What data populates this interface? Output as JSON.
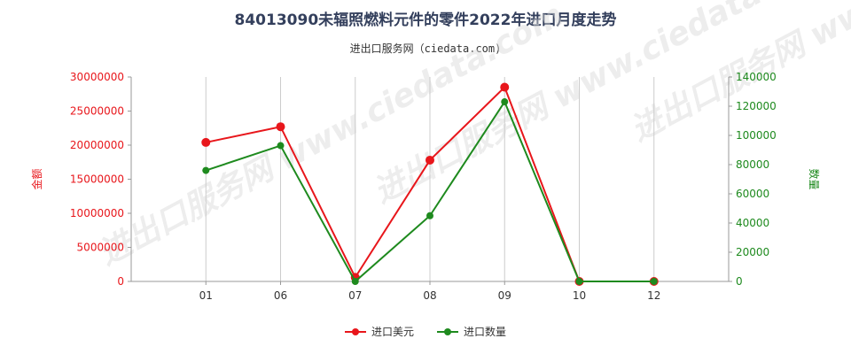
{
  "title": "84013090未辐照燃料元件的零件2022年进口月度走势",
  "subtitle": "进出口服务网（ciedata.com)",
  "watermark": "进出口服务网 www.ciedata.com",
  "colors": {
    "amount": "#e8161b",
    "quantity": "#1e8a1e",
    "grid": "#cccccc"
  },
  "chart_data": {
    "type": "line",
    "categories": [
      "01",
      "06",
      "07",
      "08",
      "09",
      "10",
      "12"
    ],
    "series": [
      {
        "name": "进口美元",
        "axis": "left",
        "values": [
          20400000,
          22700000,
          600000,
          17800000,
          28500000,
          0,
          0
        ]
      },
      {
        "name": "进口数量",
        "axis": "right",
        "values": [
          76000,
          93000,
          0,
          45000,
          123000,
          0,
          0
        ]
      }
    ],
    "ylabel_left": "金额",
    "ylabel_right": "数量",
    "ylim_left": [
      0,
      30000000
    ],
    "ylim_right": [
      0,
      140000
    ],
    "yticks_left": [
      "0",
      "5000000",
      "10000000",
      "15000000",
      "20000000",
      "25000000",
      "30000000"
    ],
    "yticks_right": [
      "0",
      "20000",
      "40000",
      "60000",
      "80000",
      "100000",
      "120000",
      "140000"
    ],
    "grid": "vertical",
    "legend_position": "bottom"
  }
}
